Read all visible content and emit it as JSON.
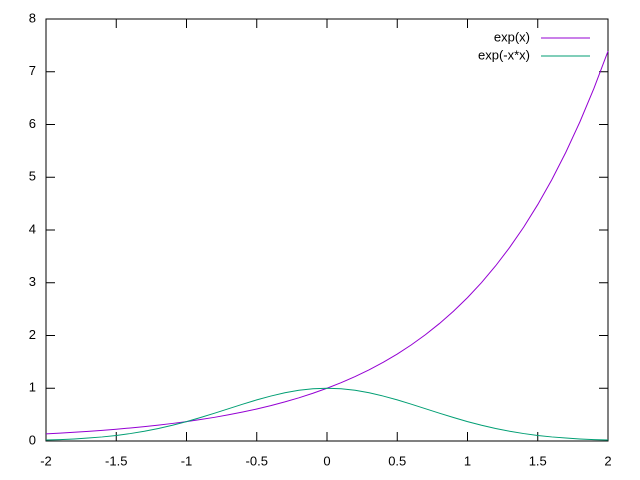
{
  "chart_data": {
    "type": "line",
    "x": [
      -2,
      -1.9,
      -1.8,
      -1.7,
      -1.6,
      -1.5,
      -1.4,
      -1.3,
      -1.2,
      -1.1,
      -1,
      -0.9,
      -0.8,
      -0.7,
      -0.6,
      -0.5,
      -0.4,
      -0.3,
      -0.2,
      -0.1,
      0,
      0.1,
      0.2,
      0.3,
      0.4,
      0.5,
      0.6,
      0.7,
      0.8,
      0.9,
      1,
      1.1,
      1.2,
      1.3,
      1.4,
      1.5,
      1.6,
      1.7,
      1.8,
      1.9,
      2
    ],
    "series": [
      {
        "name": "exp(x)",
        "color": "#9400d3",
        "values": [
          0.135,
          0.15,
          0.165,
          0.183,
          0.202,
          0.223,
          0.247,
          0.273,
          0.301,
          0.333,
          0.368,
          0.407,
          0.449,
          0.497,
          0.549,
          0.607,
          0.67,
          0.741,
          0.819,
          0.905,
          1,
          1.105,
          1.221,
          1.35,
          1.492,
          1.649,
          1.822,
          2.014,
          2.226,
          2.46,
          2.718,
          3.004,
          3.32,
          3.669,
          4.055,
          4.482,
          4.953,
          5.474,
          6.05,
          6.686,
          7.389
        ]
      },
      {
        "name": "exp(-x*x)",
        "color": "#009e73",
        "values": [
          0.018,
          0.027,
          0.039,
          0.056,
          0.077,
          0.105,
          0.141,
          0.185,
          0.237,
          0.298,
          0.368,
          0.445,
          0.527,
          0.613,
          0.698,
          0.779,
          0.852,
          0.914,
          0.961,
          0.99,
          1,
          0.99,
          0.961,
          0.914,
          0.852,
          0.779,
          0.698,
          0.613,
          0.527,
          0.445,
          0.368,
          0.298,
          0.237,
          0.185,
          0.141,
          0.105,
          0.077,
          0.056,
          0.039,
          0.027,
          0.018
        ]
      }
    ],
    "xlim": [
      -2,
      2
    ],
    "ylim": [
      0,
      8
    ],
    "xticks": [
      -2,
      -1.5,
      -1,
      -0.5,
      0,
      0.5,
      1,
      1.5,
      2
    ],
    "yticks": [
      0,
      1,
      2,
      3,
      4,
      5,
      6,
      7,
      8
    ],
    "legend": "top-right"
  }
}
